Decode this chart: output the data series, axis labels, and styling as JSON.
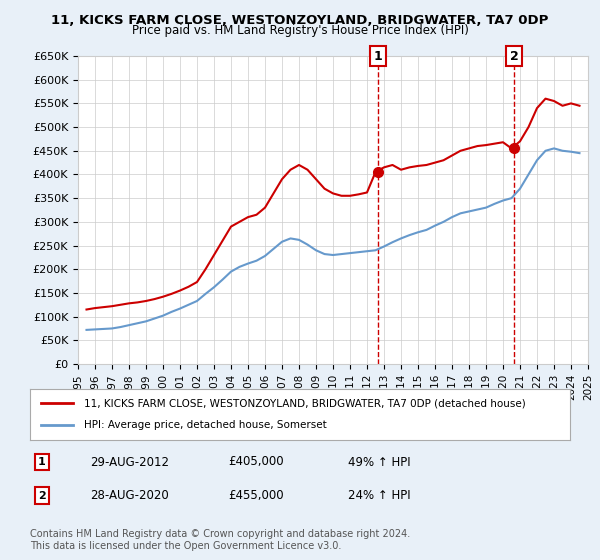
{
  "title": "11, KICKS FARM CLOSE, WESTONZOYLAND, BRIDGWATER, TA7 0DP",
  "subtitle": "Price paid vs. HM Land Registry's House Price Index (HPI)",
  "legend_line1": "11, KICKS FARM CLOSE, WESTONZOYLAND, BRIDGWATER, TA7 0DP (detached house)",
  "legend_line2": "HPI: Average price, detached house, Somerset",
  "annotation1_label": "1",
  "annotation1_date": "29-AUG-2012",
  "annotation1_price": "£405,000",
  "annotation1_hpi": "49% ↑ HPI",
  "annotation2_label": "2",
  "annotation2_date": "28-AUG-2020",
  "annotation2_price": "£455,000",
  "annotation2_hpi": "24% ↑ HPI",
  "footnote": "Contains HM Land Registry data © Crown copyright and database right 2024.\nThis data is licensed under the Open Government Licence v3.0.",
  "red_color": "#cc0000",
  "blue_color": "#6699cc",
  "vline_color": "#cc0000",
  "background_color": "#e8f0f8",
  "plot_bg_color": "#ffffff",
  "ylim": [
    0,
    650000
  ],
  "yticks": [
    0,
    50000,
    100000,
    150000,
    200000,
    250000,
    300000,
    350000,
    400000,
    450000,
    500000,
    550000,
    600000,
    650000
  ],
  "ytick_labels": [
    "£0",
    "£50K",
    "£100K",
    "£150K",
    "£200K",
    "£250K",
    "£300K",
    "£350K",
    "£400K",
    "£450K",
    "£500K",
    "£550K",
    "£600K",
    "£650K"
  ],
  "red_x": [
    1995.5,
    1996.0,
    1996.5,
    1997.0,
    1997.5,
    1998.0,
    1998.5,
    1999.0,
    1999.5,
    2000.0,
    2000.5,
    2001.0,
    2001.5,
    2002.0,
    2002.5,
    2003.0,
    2003.5,
    2004.0,
    2004.5,
    2005.0,
    2005.5,
    2006.0,
    2006.5,
    2007.0,
    2007.5,
    2008.0,
    2008.5,
    2009.0,
    2009.5,
    2010.0,
    2010.5,
    2011.0,
    2011.5,
    2012.0,
    2012.5,
    2013.0,
    2013.5,
    2014.0,
    2014.5,
    2015.0,
    2015.5,
    2016.0,
    2016.5,
    2017.0,
    2017.5,
    2018.0,
    2018.5,
    2019.0,
    2019.5,
    2020.0,
    2020.5,
    2021.0,
    2021.5,
    2022.0,
    2022.5,
    2023.0,
    2023.5,
    2024.0,
    2024.5
  ],
  "red_y": [
    115000,
    118000,
    120000,
    122000,
    125000,
    128000,
    130000,
    133000,
    137000,
    142000,
    148000,
    155000,
    163000,
    173000,
    200000,
    230000,
    260000,
    290000,
    300000,
    310000,
    315000,
    330000,
    360000,
    390000,
    410000,
    420000,
    410000,
    390000,
    370000,
    360000,
    355000,
    355000,
    358000,
    362000,
    405000,
    415000,
    420000,
    410000,
    415000,
    418000,
    420000,
    425000,
    430000,
    440000,
    450000,
    455000,
    460000,
    462000,
    465000,
    468000,
    455000,
    470000,
    500000,
    540000,
    560000,
    555000,
    545000,
    550000,
    545000
  ],
  "blue_x": [
    1995.5,
    1996.0,
    1996.5,
    1997.0,
    1997.5,
    1998.0,
    1998.5,
    1999.0,
    1999.5,
    2000.0,
    2000.5,
    2001.0,
    2001.5,
    2002.0,
    2002.5,
    2003.0,
    2003.5,
    2004.0,
    2004.5,
    2005.0,
    2005.5,
    2006.0,
    2006.5,
    2007.0,
    2007.5,
    2008.0,
    2008.5,
    2009.0,
    2009.5,
    2010.0,
    2010.5,
    2011.0,
    2011.5,
    2012.0,
    2012.5,
    2013.0,
    2013.5,
    2014.0,
    2014.5,
    2015.0,
    2015.5,
    2016.0,
    2016.5,
    2017.0,
    2017.5,
    2018.0,
    2018.5,
    2019.0,
    2019.5,
    2020.0,
    2020.5,
    2021.0,
    2021.5,
    2022.0,
    2022.5,
    2023.0,
    2023.5,
    2024.0,
    2024.5
  ],
  "blue_y": [
    72000,
    73000,
    74000,
    75000,
    78000,
    82000,
    86000,
    90000,
    96000,
    102000,
    110000,
    117000,
    125000,
    133000,
    148000,
    162000,
    178000,
    195000,
    205000,
    212000,
    218000,
    228000,
    243000,
    258000,
    265000,
    262000,
    252000,
    240000,
    232000,
    230000,
    232000,
    234000,
    236000,
    238000,
    240000,
    248000,
    257000,
    265000,
    272000,
    278000,
    283000,
    292000,
    300000,
    310000,
    318000,
    322000,
    326000,
    330000,
    338000,
    345000,
    350000,
    370000,
    400000,
    430000,
    450000,
    455000,
    450000,
    448000,
    445000
  ],
  "sale1_x": 2012.667,
  "sale1_y": 405000,
  "sale2_x": 2020.667,
  "sale2_y": 455000,
  "xtick_years": [
    1995,
    1996,
    1997,
    1998,
    1999,
    2000,
    2001,
    2002,
    2003,
    2004,
    2005,
    2006,
    2007,
    2008,
    2009,
    2010,
    2011,
    2012,
    2013,
    2014,
    2015,
    2016,
    2017,
    2018,
    2019,
    2020,
    2021,
    2022,
    2023,
    2024,
    2025
  ]
}
